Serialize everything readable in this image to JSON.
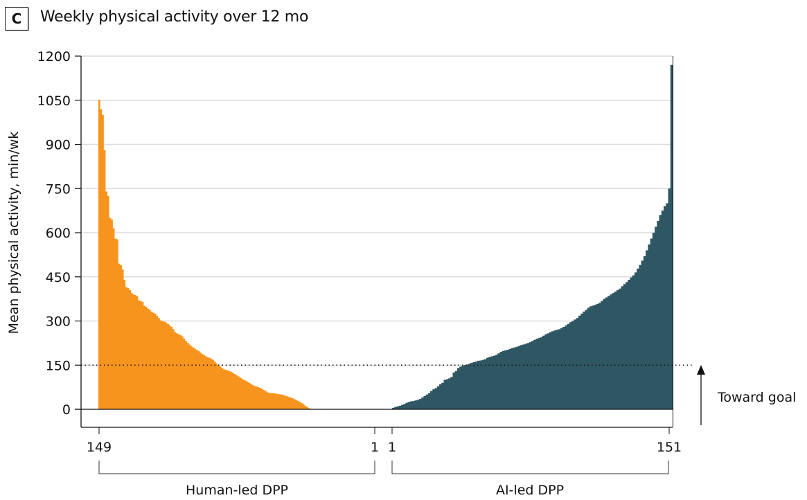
{
  "panel": {
    "letter": "C",
    "title": "Weekly physical activity over 12 mo"
  },
  "colors": {
    "human": "#F7941E",
    "ai": "#2F5663",
    "grid": "#dcdcdc",
    "axis": "#111111"
  },
  "annotation": {
    "text": "Toward goal",
    "goal_value": 150
  },
  "chart_data": {
    "type": "bar",
    "title": "Weekly physical activity over 12 mo",
    "xlabel": "",
    "ylabel": "Mean physical activity, min/wk",
    "ylim": [
      0,
      1200
    ],
    "yticks": [
      0,
      150,
      300,
      450,
      600,
      750,
      900,
      1050,
      1200
    ],
    "grid": true,
    "reference_line": {
      "y": 150,
      "style": "dotted",
      "label": "Toward goal"
    },
    "groups": [
      {
        "name": "Human-led DPP",
        "n": 149,
        "x_tick_labels": [
          "149",
          "1"
        ],
        "order": "descending",
        "color": "#F7941E",
        "values": [
          1052,
          1020,
          1000,
          880,
          740,
          725,
          650,
          645,
          615,
          580,
          578,
          495,
          490,
          475,
          440,
          415,
          412,
          405,
          395,
          390,
          388,
          385,
          370,
          368,
          365,
          352,
          348,
          342,
          338,
          332,
          328,
          325,
          318,
          310,
          302,
          300,
          298,
          295,
          290,
          286,
          280,
          272,
          262,
          258,
          255,
          252,
          248,
          240,
          232,
          226,
          220,
          214,
          210,
          206,
          202,
          198,
          193,
          188,
          184,
          180,
          177,
          175,
          172,
          168,
          162,
          156,
          150,
          145,
          140,
          136,
          134,
          132,
          130,
          127,
          124,
          120,
          116,
          112,
          108,
          104,
          100,
          97,
          94,
          90,
          86,
          82,
          79,
          77,
          75,
          73,
          70,
          66,
          62,
          58,
          56,
          55,
          55,
          54,
          53,
          52,
          51,
          50,
          48,
          46,
          44,
          42,
          40,
          37,
          34,
          31,
          28,
          25,
          21,
          17,
          12,
          8,
          4,
          2,
          1,
          1,
          1,
          0,
          0,
          0,
          0,
          0,
          0,
          0,
          0,
          0,
          0,
          0,
          0,
          0,
          0,
          0,
          0,
          0,
          0,
          0,
          0,
          0,
          0,
          0,
          0,
          0,
          0,
          0,
          0
        ]
      },
      {
        "name": "AI-led DPP",
        "n": 151,
        "x_tick_labels": [
          "1",
          "151"
        ],
        "order": "ascending",
        "color": "#2F5663",
        "values": [
          5,
          8,
          10,
          12,
          15,
          18,
          22,
          25,
          27,
          28,
          30,
          32,
          35,
          40,
          45,
          50,
          55,
          62,
          68,
          72,
          78,
          85,
          90,
          100,
          102,
          105,
          110,
          125,
          130,
          140,
          145,
          148,
          150,
          152,
          155,
          158,
          160,
          162,
          165,
          166,
          168,
          170,
          175,
          178,
          180,
          182,
          185,
          190,
          195,
          198,
          200,
          202,
          205,
          208,
          210,
          212,
          215,
          218,
          220,
          222,
          225,
          228,
          232,
          236,
          240,
          242,
          245,
          250,
          255,
          258,
          262,
          265,
          268,
          270,
          272,
          276,
          280,
          285,
          290,
          296,
          300,
          305,
          310,
          318,
          325,
          332,
          338,
          345,
          350,
          352,
          355,
          358,
          362,
          368,
          375,
          380,
          385,
          390,
          395,
          400,
          405,
          410,
          418,
          425,
          432,
          440,
          448,
          455,
          465,
          478,
          490,
          505,
          520,
          540,
          560,
          580,
          600,
          620,
          640,
          660,
          675,
          690,
          700,
          750,
          1170
        ]
      }
    ]
  },
  "axis": {
    "y_ticks": [
      "0",
      "150",
      "300",
      "450",
      "600",
      "750",
      "900",
      "1050",
      "1200"
    ],
    "x_ticks": {
      "human_left": "149",
      "human_right": "1",
      "ai_left": "1",
      "ai_right": "151"
    },
    "group_labels": {
      "human": "Human-led DPP",
      "ai": "AI-led DPP"
    }
  }
}
